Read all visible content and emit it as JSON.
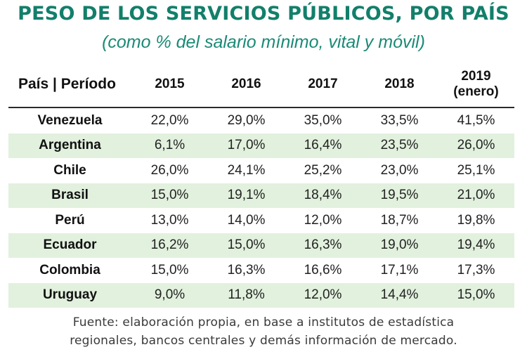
{
  "header": {
    "title": "PESO DE LOS SERVICIOS PÚBLICOS, POR PAÍS",
    "subtitle": "(como % del salario mínimo, vital y móvil)"
  },
  "chart_data": {
    "type": "table",
    "title": "PESO DE LOS SERVICIOS PÚBLICOS, POR PAÍS",
    "subtitle": "(como % del salario mínimo, vital y móvil)",
    "columns": [
      "País | Período",
      "2015",
      "2016",
      "2017",
      "2018",
      "2019 (enero)"
    ],
    "column_labels": [
      {
        "line1": "País | Período",
        "line2": ""
      },
      {
        "line1": "2015",
        "line2": ""
      },
      {
        "line1": "2016",
        "line2": ""
      },
      {
        "line1": "2017",
        "line2": ""
      },
      {
        "line1": "2018",
        "line2": ""
      },
      {
        "line1": "2019",
        "line2": "(enero)"
      }
    ],
    "rows": [
      {
        "country": "Venezuela",
        "values": [
          "22,0%",
          "29,0%",
          "35,0%",
          "33,5%",
          "41,5%"
        ]
      },
      {
        "country": "Argentina",
        "values": [
          "6,1%",
          "17,0%",
          "16,4%",
          "23,5%",
          "26,0%"
        ]
      },
      {
        "country": "Chile",
        "values": [
          "26,0%",
          "24,1%",
          "25,2%",
          "23,0%",
          "25,1%"
        ]
      },
      {
        "country": "Brasil",
        "values": [
          "15,0%",
          "19,1%",
          "18,4%",
          "19,5%",
          "21,0%"
        ]
      },
      {
        "country": "Perú",
        "values": [
          "13,0%",
          "14,0%",
          "12,0%",
          "18,7%",
          "19,8%"
        ]
      },
      {
        "country": "Ecuador",
        "values": [
          "16,2%",
          "15,0%",
          "16,3%",
          "19,0%",
          "19,4%"
        ]
      },
      {
        "country": "Colombia",
        "values": [
          "15,0%",
          "16,3%",
          "16,6%",
          "17,1%",
          "17,3%"
        ]
      },
      {
        "country": "Uruguay",
        "values": [
          "9,0%",
          "11,8%",
          "12,0%",
          "14,4%",
          "15,0%"
        ]
      }
    ]
  },
  "footer": {
    "source_line1": "Fuente: elaboración propia, en base a institutos de estadística",
    "source_line2": "regionales, bancos centrales y demás información de mercado."
  },
  "colors": {
    "title": "#127f6b",
    "subtitle": "#1a8a76",
    "row_shade": "#e2f1de",
    "header_rule": "#2a2a2a"
  }
}
